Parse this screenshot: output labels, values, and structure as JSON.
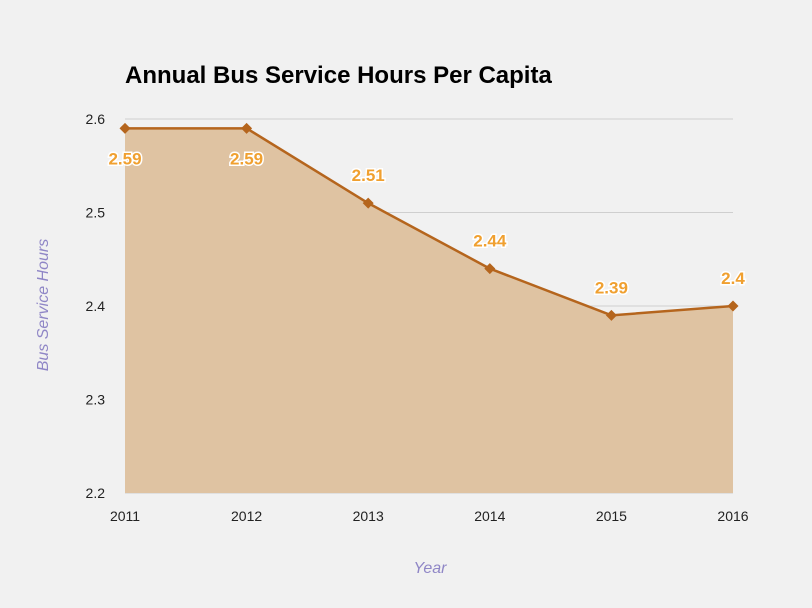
{
  "chart_data": {
    "type": "area",
    "title": "Annual Bus Service Hours Per Capita",
    "xlabel": "Year",
    "ylabel": "Bus Service Hours",
    "categories": [
      "2011",
      "2012",
      "2013",
      "2014",
      "2015",
      "2016"
    ],
    "series": [
      {
        "values": [
          2.59,
          2.59,
          2.51,
          2.44,
          2.39,
          2.4
        ],
        "data_labels": [
          "2.59",
          "2.59",
          "2.51",
          "2.44",
          "2.39",
          "2.4"
        ]
      }
    ],
    "ylim": [
      2.2,
      2.6
    ],
    "yticks": [
      "2.2",
      "2.3",
      "2.4",
      "2.5",
      "2.6"
    ],
    "grid": true,
    "legend": "none",
    "colors": {
      "line": "#b5651d",
      "fill": "#dfc3a2",
      "label": "#f0a030",
      "axis_title": "#8f86c6",
      "grid": "#cfcfcf",
      "background": "#f1f1f1"
    }
  }
}
